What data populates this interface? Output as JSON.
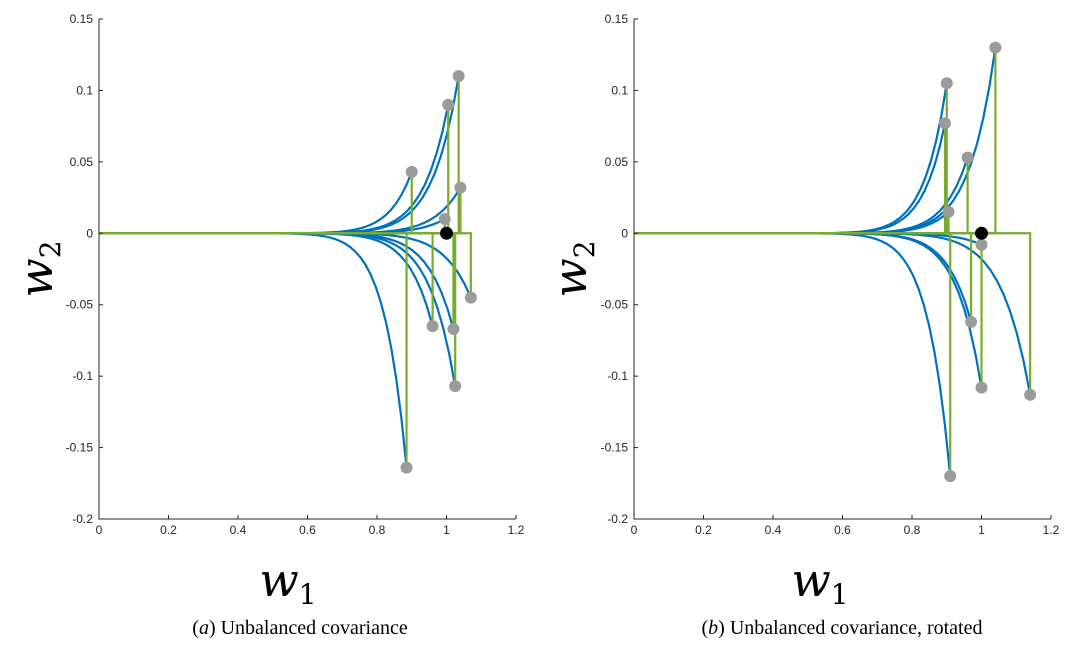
{
  "chart_data": [
    {
      "type": "line",
      "caption_letter": "a",
      "caption_text": "Unbalanced covariance",
      "xlabel": "w",
      "xlabel_sub": "1",
      "ylabel": "w",
      "ylabel_sub": "2",
      "xlim": [
        0,
        1.2
      ],
      "ylim": [
        -0.2,
        0.15
      ],
      "xticks": [
        "0",
        "0.2",
        "0.4",
        "0.6",
        "0.8",
        "1",
        "1.2"
      ],
      "yticks": [
        "-0.2",
        "-0.15",
        "-0.1",
        "-0.05",
        "0",
        "0.05",
        "0.1",
        "0.15"
      ],
      "grid": false,
      "colors": {
        "trajectory": "#0072BD",
        "projection": "#77AC30",
        "endpoint": "#9B9B9B",
        "target": "#000000"
      },
      "target_point": [
        1.0,
        0.0
      ],
      "trajectories": [
        {
          "end": [
            0.9,
            0.043
          ]
        },
        {
          "end": [
            1.005,
            0.09
          ]
        },
        {
          "end": [
            1.035,
            0.11
          ]
        },
        {
          "end": [
            1.04,
            0.032
          ]
        },
        {
          "end": [
            0.995,
            0.01
          ]
        },
        {
          "end": [
            1.07,
            -0.045
          ]
        },
        {
          "end": [
            0.96,
            -0.065
          ]
        },
        {
          "end": [
            1.02,
            -0.067
          ]
        },
        {
          "end": [
            1.025,
            -0.107
          ]
        },
        {
          "end": [
            0.885,
            -0.164
          ]
        }
      ]
    },
    {
      "type": "line",
      "caption_letter": "b",
      "caption_text": "Unbalanced covariance, rotated",
      "xlabel": "w",
      "xlabel_sub": "1",
      "ylabel": "w",
      "ylabel_sub": "2",
      "xlim": [
        0,
        1.2
      ],
      "ylim": [
        -0.2,
        0.15
      ],
      "xticks": [
        "0",
        "0.2",
        "0.4",
        "0.6",
        "0.8",
        "1",
        "1.2"
      ],
      "yticks": [
        "-0.2",
        "-0.15",
        "-0.1",
        "-0.05",
        "0",
        "0.05",
        "0.1",
        "0.15"
      ],
      "grid": false,
      "colors": {
        "trajectory": "#0072BD",
        "projection": "#77AC30",
        "endpoint": "#9B9B9B",
        "target": "#000000"
      },
      "target_point": [
        1.0,
        0.0
      ],
      "trajectories": [
        {
          "end": [
            0.9,
            0.105
          ]
        },
        {
          "end": [
            0.895,
            0.077
          ]
        },
        {
          "end": [
            1.04,
            0.13
          ]
        },
        {
          "end": [
            0.96,
            0.053
          ]
        },
        {
          "end": [
            0.905,
            0.015
          ]
        },
        {
          "end": [
            1.0,
            -0.008
          ]
        },
        {
          "end": [
            0.97,
            -0.062
          ]
        },
        {
          "end": [
            1.0,
            -0.108
          ]
        },
        {
          "end": [
            1.14,
            -0.113
          ]
        },
        {
          "end": [
            0.91,
            -0.17
          ]
        }
      ]
    }
  ]
}
